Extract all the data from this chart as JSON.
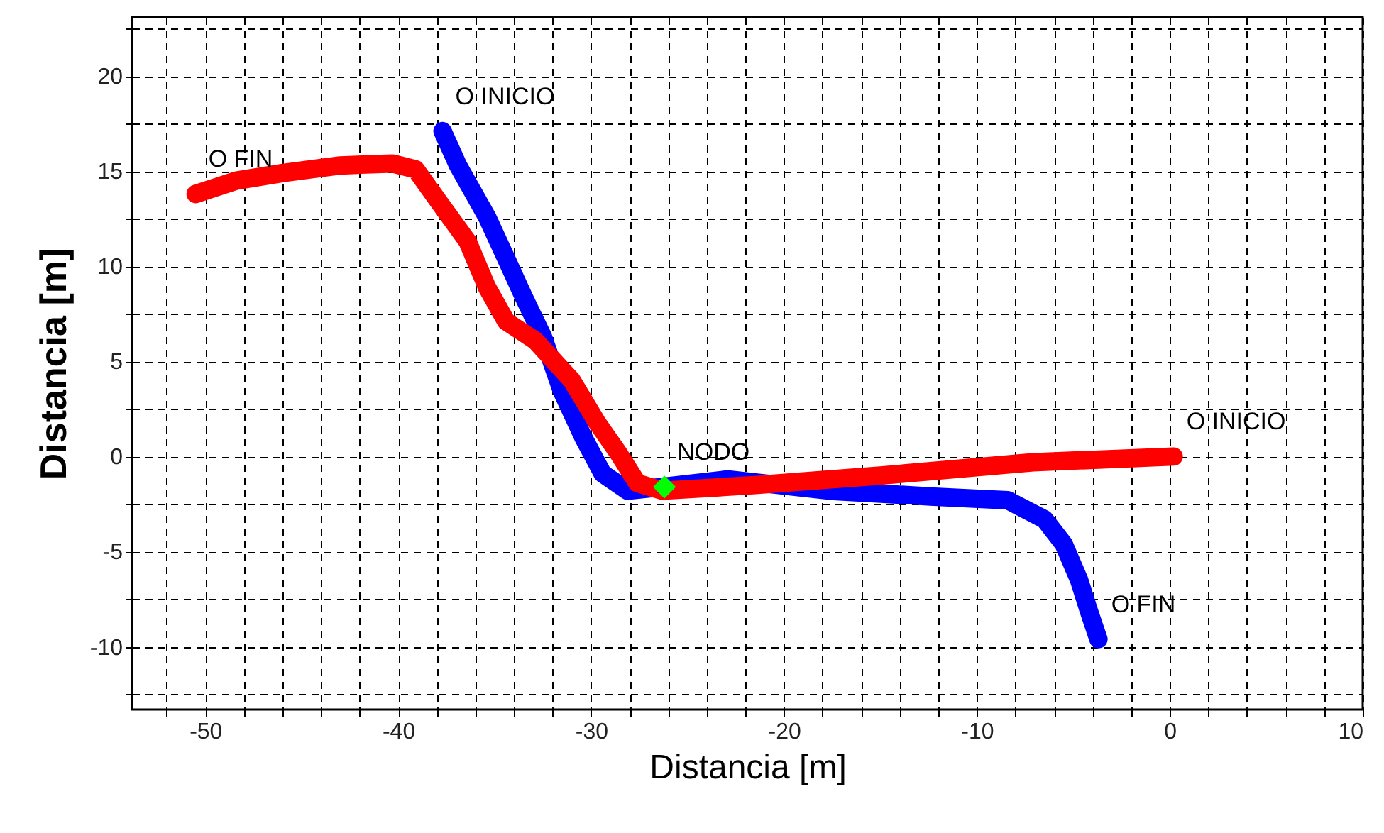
{
  "chart_data": {
    "type": "line",
    "xlabel": "Distancia [m]",
    "ylabel": "Distancia [m]",
    "xlim": [
      -53.8,
      10
    ],
    "ylim": [
      -13.3,
      23.1
    ],
    "xticks": [
      {
        "value": -52,
        "label": null
      },
      -50,
      {
        "value": -48,
        "label": null
      },
      {
        "value": -46,
        "label": null
      },
      {
        "value": -44,
        "label": null
      },
      {
        "value": -42,
        "label": null
      },
      -40,
      {
        "value": -38,
        "label": null
      },
      {
        "value": -36,
        "label": null
      },
      {
        "value": -34,
        "label": null
      },
      {
        "value": -32,
        "label": null
      },
      -30,
      {
        "value": -28,
        "label": null
      },
      {
        "value": -26,
        "label": null
      },
      {
        "value": -24,
        "label": null
      },
      {
        "value": -22,
        "label": null
      },
      -20,
      {
        "value": -18,
        "label": null
      },
      {
        "value": -16,
        "label": null
      },
      {
        "value": -14,
        "label": null
      },
      {
        "value": -12,
        "label": null
      },
      -10,
      {
        "value": -8,
        "label": null
      },
      {
        "value": -6,
        "label": null
      },
      {
        "value": -4,
        "label": null
      },
      {
        "value": -2,
        "label": null
      },
      0,
      {
        "value": 2,
        "label": null
      },
      {
        "value": 4,
        "label": null
      },
      {
        "value": 6,
        "label": null
      },
      {
        "value": 8,
        "label": null
      },
      10
    ],
    "yticks": [
      {
        "value": -12.5,
        "label": null
      },
      -10,
      {
        "value": -7.5,
        "label": null
      },
      -5,
      {
        "value": -2.5,
        "label": null
      },
      0,
      {
        "value": 2.5,
        "label": null
      },
      5,
      {
        "value": 7.5,
        "label": null
      },
      10,
      {
        "value": 12.5,
        "label": null
      },
      15,
      {
        "value": 17.5,
        "label": null
      },
      20,
      {
        "value": 22.5,
        "label": null
      }
    ],
    "grid": true,
    "series": [
      {
        "color": "#0000ff",
        "x": [
          -37.7,
          -36.9,
          -35.4,
          -34.4,
          -33.5,
          -32.5,
          -31.5,
          -30.4,
          -29.4,
          -28.1,
          -26.3,
          -22.9,
          -17.6,
          -12.4,
          -8.4,
          -6.5,
          -5.5,
          -4.7,
          -4.2,
          -3.7
        ],
        "values": [
          17.1,
          15.3,
          12.6,
          10.4,
          8.4,
          6.3,
          3.4,
          1.0,
          -0.9,
          -1.8,
          -1.6,
          -1.2,
          -1.8,
          -2.1,
          -2.3,
          -3.3,
          -4.6,
          -6.5,
          -8.1,
          -9.6
        ]
      },
      {
        "color": "#ff0000",
        "x": [
          0.2,
          -7.1,
          -15,
          -21.5,
          -26.3,
          -27.6,
          -28.6,
          -29.7,
          -31,
          -32.9,
          -34.4,
          -35.4,
          -36.4,
          -37.9,
          -39.1,
          -40.3,
          -43,
          -46,
          -48.4,
          -50.5
        ],
        "values": [
          0,
          -0.3,
          -1.0,
          -1.5,
          -1.8,
          -1.4,
          0.2,
          1.8,
          4.0,
          6.1,
          7.1,
          8.9,
          11.3,
          13.4,
          15.1,
          15.4,
          15.3,
          14.9,
          14.5,
          13.8
        ]
      },
      {
        "type": "scatter",
        "marker": "diamond",
        "color": "#00ff00",
        "x": [
          -26.2
        ],
        "values": [
          -1.6
        ]
      }
    ],
    "annotations": [
      {
        "text": "O INICIO",
        "x": -37.7,
        "y": 17.1
      },
      {
        "text": "O FIN",
        "x": -50.5,
        "y": 13.8
      },
      {
        "text": "O INICIO",
        "x": 0.2,
        "y": 0
      },
      {
        "text": "O FIN",
        "x": -3.7,
        "y": -9.6
      },
      {
        "text": "NODO",
        "x": -26.2,
        "y": -1.6
      }
    ]
  }
}
